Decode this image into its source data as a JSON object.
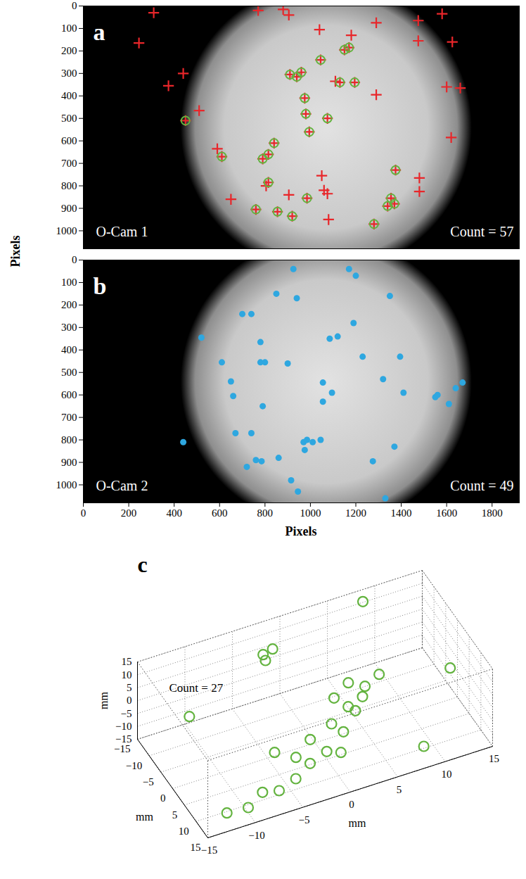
{
  "chart_data": [
    {
      "type": "scatter",
      "title": "a",
      "ylabel": "Pixels",
      "annotations": [
        "O-Cam 1",
        "Count = 57"
      ],
      "xlim": [
        0,
        1920
      ],
      "ylim": [
        0,
        1080
      ],
      "yticks": [
        0,
        100,
        200,
        300,
        400,
        500,
        600,
        700,
        800,
        900,
        1000
      ],
      "tick_labels": "y",
      "series": [
        {
          "color": "#e8262a",
          "marker": "plus",
          "x": [
            245,
            310,
            375,
            440,
            510,
            590,
            650,
            770,
            805,
            880,
            905,
            905,
            1040,
            1050,
            1060,
            1075,
            1080,
            1110,
            1180,
            1290,
            1290,
            1475,
            1475,
            1480,
            1480,
            1580,
            1625,
            1600,
            1620,
            1660,
            450,
            610,
            760,
            790,
            815,
            815,
            840,
            855,
            910,
            920,
            940,
            960,
            975,
            980,
            985,
            995,
            1045,
            1075,
            1130,
            1150,
            1170,
            1195,
            1280,
            1340,
            1355,
            1370,
            1375
          ],
          "y": [
            165,
            30,
            355,
            300,
            465,
            635,
            860,
            20,
            800,
            15,
            40,
            840,
            105,
            755,
            820,
            835,
            950,
            335,
            130,
            75,
            395,
            65,
            155,
            765,
            825,
            35,
            160,
            360,
            585,
            365,
            510,
            670,
            905,
            680,
            660,
            785,
            610,
            915,
            305,
            935,
            315,
            295,
            410,
            480,
            855,
            560,
            240,
            500,
            340,
            195,
            185,
            340,
            970,
            890,
            855,
            880,
            730
          ]
        },
        {
          "color": "#63b33f",
          "marker": "circle",
          "x": [
            450,
            610,
            760,
            790,
            815,
            815,
            840,
            855,
            910,
            920,
            940,
            960,
            975,
            980,
            985,
            995,
            1045,
            1075,
            1130,
            1150,
            1170,
            1195,
            1280,
            1340,
            1355,
            1370,
            1375
          ],
          "y": [
            510,
            670,
            905,
            680,
            660,
            785,
            610,
            915,
            305,
            935,
            315,
            295,
            410,
            480,
            855,
            560,
            240,
            500,
            340,
            195,
            185,
            340,
            970,
            890,
            855,
            880,
            730
          ]
        }
      ]
    },
    {
      "type": "scatter",
      "title": "b",
      "xlabel": "Pixels",
      "annotations": [
        "O-Cam 2",
        "Count = 49"
      ],
      "xlim": [
        0,
        1920
      ],
      "ylim": [
        0,
        1080
      ],
      "xticks": [
        0,
        200,
        400,
        600,
        800,
        1000,
        1200,
        1400,
        1600,
        1800
      ],
      "yticks": [
        0,
        100,
        200,
        300,
        400,
        500,
        600,
        700,
        800,
        900,
        1000
      ],
      "series": [
        {
          "color": "#2ea7e0",
          "marker": "dot",
          "x": [
            440,
            520,
            610,
            650,
            660,
            670,
            700,
            720,
            740,
            740,
            760,
            780,
            780,
            785,
            790,
            800,
            850,
            860,
            900,
            915,
            925,
            940,
            945,
            970,
            975,
            985,
            1010,
            1045,
            1055,
            1055,
            1085,
            1095,
            1120,
            1170,
            1190,
            1200,
            1230,
            1275,
            1320,
            1330,
            1350,
            1370,
            1395,
            1410,
            1550,
            1560,
            1610,
            1640,
            1670
          ],
          "y": [
            810,
            345,
            455,
            540,
            605,
            770,
            240,
            920,
            240,
            770,
            890,
            455,
            365,
            895,
            650,
            455,
            150,
            880,
            460,
            980,
            40,
            170,
            1030,
            810,
            845,
            800,
            810,
            800,
            545,
            630,
            350,
            590,
            340,
            40,
            280,
            70,
            430,
            895,
            530,
            1060,
            160,
            830,
            430,
            590,
            610,
            600,
            640,
            570,
            545
          ]
        }
      ]
    },
    {
      "type": "scatter3d",
      "title": "c",
      "xlabel": "mm",
      "ylabel": "mm",
      "zlabel": "mm",
      "annotations": [
        "Count = 27"
      ],
      "xlim": [
        -15,
        15
      ],
      "ylim": [
        -15,
        15
      ],
      "zlim": [
        -15,
        15
      ],
      "xticks": [
        -15,
        -10,
        -5,
        0,
        5,
        10,
        15
      ],
      "yticks": [
        -15,
        -10,
        -5,
        0,
        5,
        10,
        15
      ],
      "zticks": [
        -15,
        -10,
        -5,
        0,
        5,
        10,
        15
      ],
      "grid": true,
      "series": [
        {
          "color": "#63b33f",
          "marker": "circle",
          "x": [
            -10,
            -9,
            -10,
            -5,
            -12,
            5,
            14,
            0,
            2,
            -2,
            0,
            3,
            1,
            4,
            -3,
            2,
            5,
            6,
            8,
            4,
            7,
            10,
            12,
            9,
            11,
            3,
            -1
          ],
          "y": [
            -3,
            -3,
            -2,
            -12,
            8,
            13,
            8,
            2,
            3,
            4,
            5,
            1,
            4,
            2,
            6,
            -1,
            0,
            -2,
            -4,
            -3,
            1,
            -8,
            -10,
            -6,
            -12,
            -5,
            7
          ],
          "z": [
            10,
            9,
            11,
            3,
            15,
            5,
            -8,
            0,
            -2,
            1,
            -3,
            -5,
            -6,
            -8,
            -4,
            -10,
            -12,
            -13,
            -14,
            -12,
            -11,
            -12,
            -13,
            -15,
            -14,
            -9,
            2
          ]
        }
      ]
    }
  ]
}
